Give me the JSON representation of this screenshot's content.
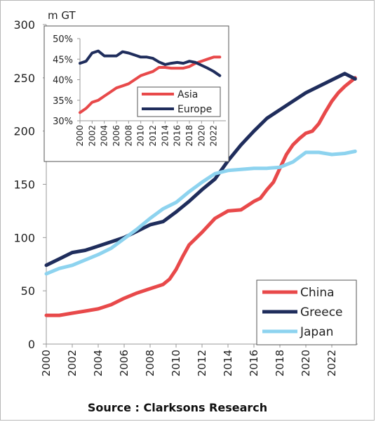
{
  "source": "Source : Clarksons Research",
  "chart_data": [
    {
      "type": "line",
      "ylabel": "m GT",
      "xlim": [
        2000,
        2024
      ],
      "ylim": [
        0,
        300
      ],
      "yticks": [
        0,
        50,
        100,
        150,
        200,
        250,
        300
      ],
      "xticks": [
        2000,
        2002,
        2004,
        2006,
        2008,
        2010,
        2012,
        2014,
        2016,
        2018,
        2020,
        2022
      ],
      "grid": false,
      "legend_position": "bottom-right",
      "series": [
        {
          "name": "China",
          "color": "#e8494a",
          "x": [
            2000,
            2001,
            2002,
            2003,
            2004,
            2005,
            2006,
            2007,
            2008,
            2009,
            2009.5,
            2010,
            2010.5,
            2011,
            2012,
            2013,
            2014,
            2015,
            2016,
            2016.5,
            2017,
            2017.5,
            2018,
            2018.5,
            2019,
            2019.5,
            2020,
            2020.5,
            2021,
            2021.5,
            2022,
            2022.5,
            2023,
            2023.5,
            2023.8
          ],
          "y": [
            27,
            27,
            29,
            31,
            33,
            37,
            43,
            48,
            52,
            56,
            61,
            70,
            82,
            93,
            105,
            118,
            125,
            126,
            134,
            137,
            145,
            152,
            165,
            178,
            187,
            193,
            198,
            200,
            207,
            218,
            228,
            236,
            242,
            247,
            250
          ]
        },
        {
          "name": "Greece",
          "color": "#1f2d5c",
          "x": [
            2000,
            2001,
            2002,
            2003,
            2004,
            2005,
            2006,
            2007,
            2008,
            2009,
            2010,
            2011,
            2012,
            2013,
            2014,
            2015,
            2016,
            2017,
            2018,
            2019,
            2020,
            2021,
            2022,
            2023,
            2023.8
          ],
          "y": [
            74,
            80,
            86,
            88,
            92,
            96,
            100,
            106,
            112,
            115,
            124,
            134,
            145,
            155,
            172,
            187,
            200,
            212,
            220,
            228,
            236,
            242,
            248,
            254,
            249
          ]
        },
        {
          "name": "Japan",
          "color": "#8dd3ef",
          "x": [
            2000,
            2001,
            2002,
            2003,
            2004,
            2005,
            2006,
            2007,
            2008,
            2009,
            2010,
            2011,
            2012,
            2013,
            2014,
            2015,
            2016,
            2017,
            2018,
            2019,
            2020,
            2021,
            2022,
            2023,
            2023.8
          ],
          "y": [
            66,
            71,
            74,
            79,
            84,
            90,
            99,
            108,
            118,
            127,
            133,
            143,
            152,
            160,
            163,
            164,
            165,
            165,
            166,
            171,
            180,
            180,
            178,
            179,
            181
          ]
        }
      ]
    },
    {
      "type": "line",
      "ylim": [
        0.3,
        0.5
      ],
      "yticks": [
        "30%",
        "35%",
        "40%",
        "45%",
        "50%"
      ],
      "ytick_values": [
        0.3,
        0.35,
        0.4,
        0.45,
        0.5
      ],
      "xlim": [
        2000,
        2024
      ],
      "xticks": [
        2000,
        2002,
        2004,
        2006,
        2008,
        2010,
        2012,
        2014,
        2016,
        2018,
        2020,
        2022
      ],
      "grid": false,
      "legend_position": "center-right",
      "series": [
        {
          "name": "Asia",
          "color": "#e8494a",
          "x": [
            2000,
            2001,
            2002,
            2003,
            2004,
            2005,
            2006,
            2007,
            2008,
            2009,
            2010,
            2011,
            2012,
            2013,
            2014,
            2015,
            2016,
            2017,
            2018,
            2019,
            2020,
            2021,
            2022,
            2023
          ],
          "y": [
            0.32,
            0.33,
            0.345,
            0.35,
            0.36,
            0.37,
            0.38,
            0.385,
            0.39,
            0.4,
            0.41,
            0.415,
            0.42,
            0.43,
            0.43,
            0.428,
            0.428,
            0.428,
            0.432,
            0.44,
            0.445,
            0.45,
            0.455,
            0.455
          ]
        },
        {
          "name": "Europe",
          "color": "#1f2d5c",
          "x": [
            2000,
            2001,
            2002,
            2003,
            2004,
            2005,
            2006,
            2007,
            2008,
            2009,
            2010,
            2011,
            2012,
            2013,
            2014,
            2015,
            2016,
            2017,
            2018,
            2019,
            2020,
            2021,
            2022,
            2023
          ],
          "y": [
            0.44,
            0.445,
            0.465,
            0.47,
            0.458,
            0.458,
            0.458,
            0.468,
            0.465,
            0.46,
            0.455,
            0.455,
            0.452,
            0.443,
            0.437,
            0.44,
            0.442,
            0.44,
            0.445,
            0.442,
            0.435,
            0.428,
            0.42,
            0.41
          ]
        }
      ]
    }
  ]
}
